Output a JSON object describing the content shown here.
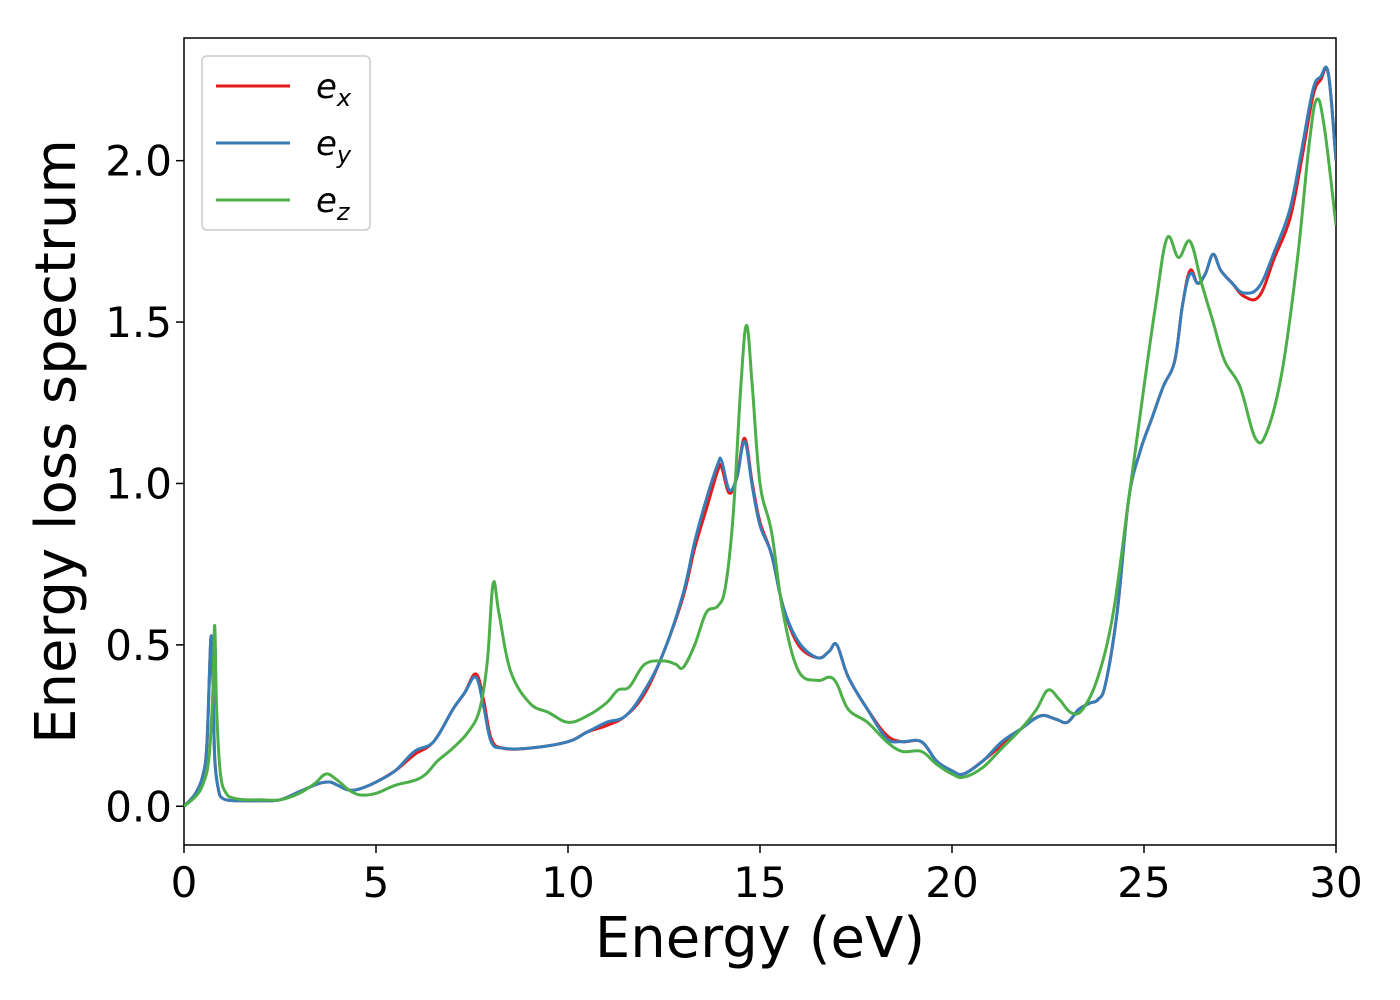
{
  "chart_data": {
    "type": "line",
    "title": "",
    "xlabel": "Energy (eV)",
    "ylabel": "Energy loss spectrum",
    "xlim": [
      0,
      30
    ],
    "ylim": [
      -0.12,
      2.38
    ],
    "xticks": [
      0,
      5,
      10,
      15,
      20,
      25,
      30
    ],
    "xtick_labels": [
      "0",
      "5",
      "10",
      "15",
      "20",
      "25",
      "30"
    ],
    "yticks": [
      0.0,
      0.5,
      1.0,
      1.5,
      2.0
    ],
    "ytick_labels": [
      "0.0",
      "0.5",
      "1.0",
      "1.5",
      "2.0"
    ],
    "grid": false,
    "legend_position": "top-left",
    "series": [
      {
        "name": "e_x",
        "label_main": "e",
        "label_sub": "x",
        "color": "#e41a1c",
        "x": [
          0,
          0.3,
          0.5,
          0.6,
          0.7,
          0.75,
          0.8,
          0.9,
          1.0,
          1.2,
          1.5,
          2.0,
          2.5,
          3.0,
          3.5,
          3.8,
          4.0,
          4.3,
          4.6,
          5.0,
          5.5,
          6.0,
          6.5,
          7.0,
          7.3,
          7.6,
          7.8,
          8.0,
          8.3,
          9.0,
          10.0,
          10.5,
          11.0,
          11.5,
          12.0,
          12.5,
          13.0,
          13.3,
          13.6,
          13.9,
          14.0,
          14.2,
          14.4,
          14.6,
          14.8,
          15.0,
          15.3,
          15.6,
          16.0,
          16.5,
          16.8,
          17.0,
          17.3,
          17.8,
          18.3,
          18.7,
          19.2,
          19.6,
          20.0,
          20.3,
          20.8,
          21.3,
          21.8,
          22.3,
          22.7,
          23.0,
          23.3,
          23.6,
          23.8,
          24.0,
          24.3,
          24.6,
          24.9,
          25.2,
          25.5,
          25.8,
          26.0,
          26.2,
          26.4,
          26.6,
          26.8,
          27.0,
          27.3,
          27.6,
          28.0,
          28.4,
          28.8,
          29.1,
          29.4,
          29.6,
          29.8,
          30.0
        ],
        "values": [
          0.0,
          0.04,
          0.1,
          0.2,
          0.52,
          0.4,
          0.15,
          0.05,
          0.025,
          0.018,
          0.017,
          0.017,
          0.02,
          0.045,
          0.07,
          0.075,
          0.065,
          0.05,
          0.055,
          0.075,
          0.11,
          0.16,
          0.2,
          0.3,
          0.35,
          0.41,
          0.33,
          0.21,
          0.18,
          0.18,
          0.2,
          0.23,
          0.25,
          0.28,
          0.35,
          0.48,
          0.65,
          0.8,
          0.92,
          1.04,
          1.05,
          0.97,
          1.02,
          1.14,
          1.0,
          0.88,
          0.78,
          0.62,
          0.5,
          0.46,
          0.48,
          0.5,
          0.4,
          0.3,
          0.22,
          0.2,
          0.2,
          0.14,
          0.11,
          0.1,
          0.14,
          0.19,
          0.24,
          0.28,
          0.27,
          0.26,
          0.3,
          0.32,
          0.33,
          0.38,
          0.6,
          0.95,
          1.1,
          1.2,
          1.3,
          1.38,
          1.55,
          1.66,
          1.62,
          1.65,
          1.71,
          1.66,
          1.62,
          1.58,
          1.58,
          1.7,
          1.82,
          2.0,
          2.2,
          2.25,
          2.27,
          2.0
        ]
      },
      {
        "name": "e_y",
        "label_main": "e",
        "label_sub": "y",
        "color": "#377eb8",
        "x": [
          0,
          0.3,
          0.5,
          0.6,
          0.7,
          0.75,
          0.8,
          0.9,
          1.0,
          1.2,
          1.5,
          2.0,
          2.5,
          3.0,
          3.5,
          3.8,
          4.0,
          4.3,
          4.6,
          5.0,
          5.5,
          6.0,
          6.5,
          7.0,
          7.3,
          7.6,
          7.8,
          8.0,
          8.3,
          9.0,
          10.0,
          10.5,
          11.0,
          11.5,
          12.0,
          12.5,
          13.0,
          13.3,
          13.6,
          13.9,
          14.0,
          14.2,
          14.4,
          14.6,
          14.8,
          15.0,
          15.3,
          15.6,
          16.0,
          16.5,
          16.8,
          17.0,
          17.3,
          17.8,
          18.3,
          18.7,
          19.2,
          19.6,
          20.0,
          20.3,
          20.8,
          21.3,
          21.8,
          22.3,
          22.7,
          23.0,
          23.3,
          23.6,
          23.8,
          24.0,
          24.3,
          24.6,
          24.9,
          25.2,
          25.5,
          25.8,
          26.0,
          26.2,
          26.4,
          26.6,
          26.8,
          27.0,
          27.3,
          27.6,
          28.0,
          28.4,
          28.8,
          29.1,
          29.4,
          29.6,
          29.8,
          30.0
        ],
        "values": [
          0.0,
          0.04,
          0.1,
          0.2,
          0.52,
          0.4,
          0.15,
          0.05,
          0.025,
          0.018,
          0.017,
          0.017,
          0.02,
          0.045,
          0.07,
          0.075,
          0.065,
          0.05,
          0.055,
          0.075,
          0.11,
          0.17,
          0.2,
          0.3,
          0.35,
          0.4,
          0.31,
          0.2,
          0.18,
          0.18,
          0.2,
          0.23,
          0.26,
          0.28,
          0.36,
          0.48,
          0.66,
          0.82,
          0.95,
          1.06,
          1.07,
          0.98,
          1.02,
          1.13,
          0.99,
          0.87,
          0.78,
          0.62,
          0.51,
          0.46,
          0.48,
          0.5,
          0.4,
          0.3,
          0.21,
          0.2,
          0.2,
          0.14,
          0.11,
          0.1,
          0.14,
          0.2,
          0.24,
          0.28,
          0.27,
          0.26,
          0.3,
          0.32,
          0.33,
          0.38,
          0.6,
          0.95,
          1.1,
          1.2,
          1.3,
          1.38,
          1.55,
          1.65,
          1.62,
          1.65,
          1.71,
          1.66,
          1.62,
          1.59,
          1.61,
          1.72,
          1.85,
          2.03,
          2.22,
          2.26,
          2.27,
          2.0
        ]
      },
      {
        "name": "e_z",
        "label_main": "e",
        "label_sub": "z",
        "color": "#4daf4a",
        "x": [
          0,
          0.3,
          0.5,
          0.65,
          0.75,
          0.8,
          0.85,
          0.95,
          1.1,
          1.3,
          1.6,
          2.0,
          2.5,
          3.0,
          3.4,
          3.7,
          4.0,
          4.3,
          4.6,
          5.0,
          5.5,
          6.0,
          6.3,
          6.6,
          7.0,
          7.4,
          7.7,
          7.9,
          8.05,
          8.2,
          8.5,
          9.0,
          9.5,
          10.0,
          10.5,
          11.0,
          11.3,
          11.6,
          12.0,
          12.5,
          12.8,
          13.0,
          13.3,
          13.6,
          13.9,
          14.1,
          14.3,
          14.5,
          14.65,
          14.8,
          15.0,
          15.3,
          15.6,
          16.0,
          16.5,
          16.8,
          17.0,
          17.3,
          17.8,
          18.3,
          18.7,
          19.2,
          19.6,
          20.0,
          20.3,
          20.8,
          21.3,
          21.8,
          22.2,
          22.5,
          22.8,
          23.1,
          23.4,
          23.8,
          24.2,
          24.6,
          25.0,
          25.3,
          25.6,
          25.9,
          26.2,
          26.5,
          26.8,
          27.1,
          27.5,
          27.9,
          28.2,
          28.6,
          29.0,
          29.3,
          29.5,
          29.7,
          30.0
        ],
        "values": [
          0.0,
          0.03,
          0.07,
          0.15,
          0.35,
          0.56,
          0.3,
          0.1,
          0.04,
          0.025,
          0.02,
          0.02,
          0.02,
          0.04,
          0.07,
          0.1,
          0.08,
          0.05,
          0.035,
          0.04,
          0.065,
          0.08,
          0.1,
          0.14,
          0.18,
          0.23,
          0.3,
          0.45,
          0.69,
          0.6,
          0.42,
          0.32,
          0.29,
          0.26,
          0.28,
          0.32,
          0.36,
          0.37,
          0.44,
          0.45,
          0.44,
          0.43,
          0.5,
          0.6,
          0.62,
          0.68,
          0.9,
          1.3,
          1.49,
          1.3,
          1.0,
          0.85,
          0.6,
          0.42,
          0.39,
          0.4,
          0.38,
          0.3,
          0.26,
          0.2,
          0.17,
          0.17,
          0.13,
          0.1,
          0.09,
          0.12,
          0.18,
          0.24,
          0.3,
          0.36,
          0.33,
          0.29,
          0.3,
          0.4,
          0.6,
          0.95,
          1.3,
          1.55,
          1.76,
          1.7,
          1.75,
          1.62,
          1.5,
          1.38,
          1.3,
          1.14,
          1.16,
          1.35,
          1.7,
          2.05,
          2.19,
          2.1,
          1.8
        ]
      }
    ]
  }
}
